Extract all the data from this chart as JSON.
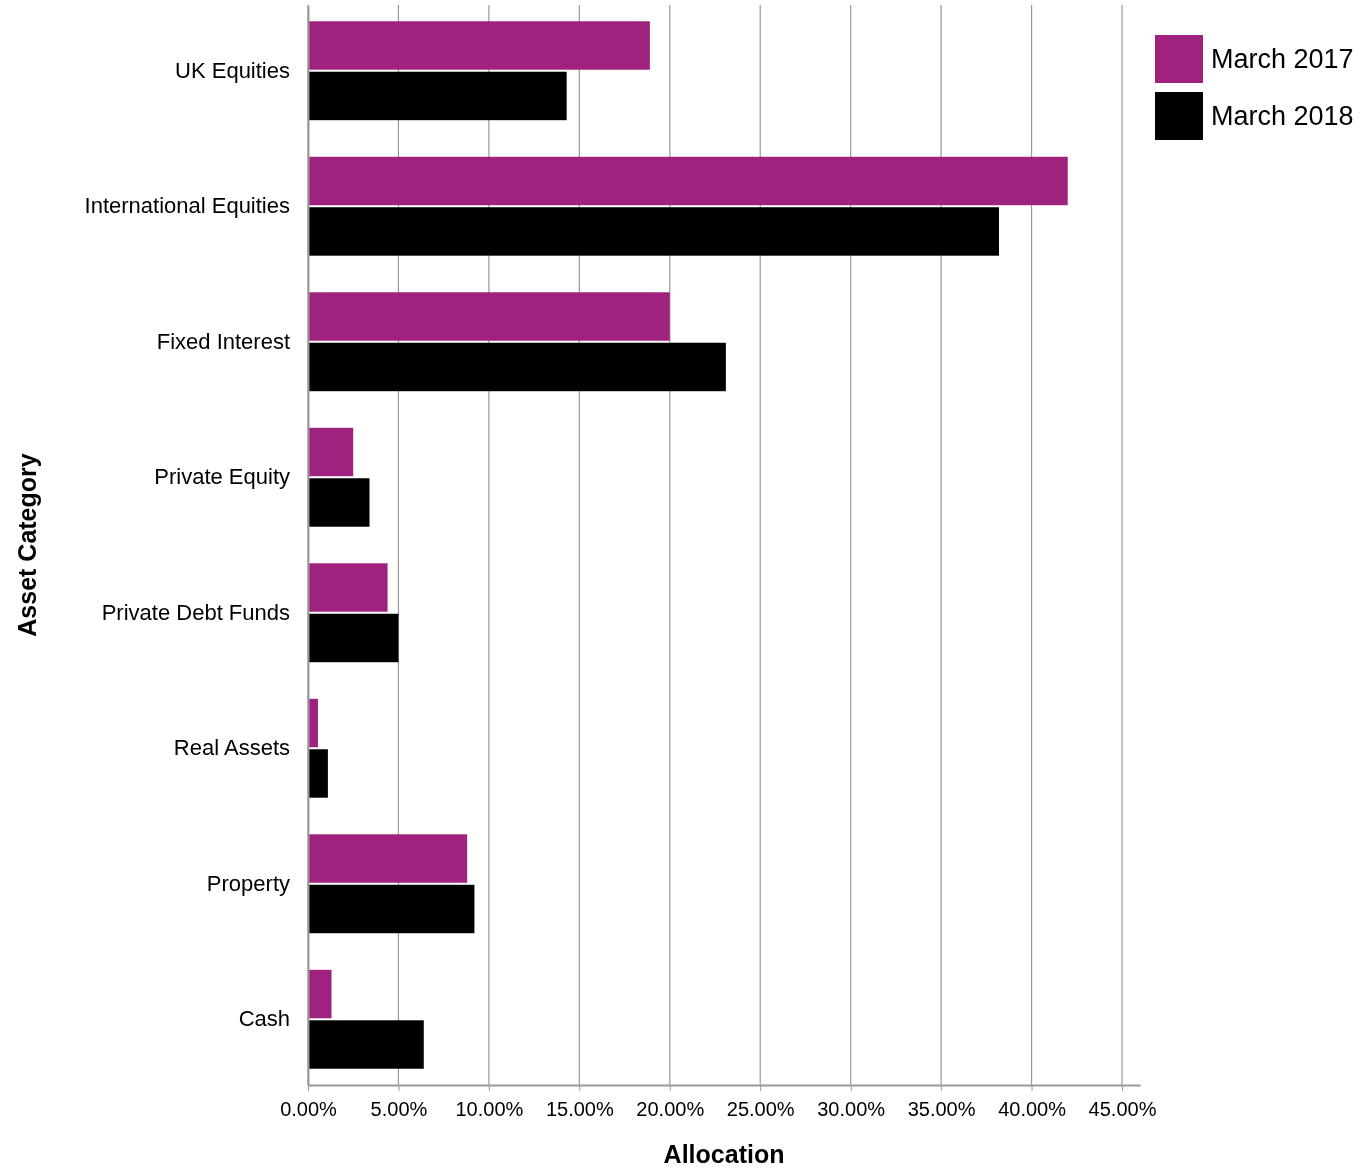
{
  "chart_data": {
    "type": "bar",
    "orientation": "horizontal",
    "xlabel": "Allocation",
    "ylabel": "Asset Category",
    "categories": [
      "UK Equities",
      "International Equities",
      "Fixed Interest",
      "Private Equity",
      "Private Debt Funds",
      "Real Assets",
      "Property",
      "Cash"
    ],
    "series": [
      {
        "name": "March 2017",
        "color": "#a0227f",
        "values": [
          18.9,
          42.0,
          20.0,
          2.5,
          4.4,
          0.55,
          8.8,
          1.3
        ]
      },
      {
        "name": "March 2018",
        "color": "#000000",
        "values": [
          14.3,
          38.2,
          23.1,
          3.4,
          5.0,
          1.1,
          9.2,
          6.4
        ]
      }
    ],
    "xlim": [
      0,
      46
    ],
    "xticks": [
      {
        "value": 0,
        "label": "0.00%"
      },
      {
        "value": 5,
        "label": "5.00%"
      },
      {
        "value": 10,
        "label": "10.00%"
      },
      {
        "value": 15,
        "label": "15.00%"
      },
      {
        "value": 20,
        "label": "20.00%"
      },
      {
        "value": 25,
        "label": "25.00%"
      },
      {
        "value": 30,
        "label": "30.00%"
      },
      {
        "value": 35,
        "label": "35.00%"
      },
      {
        "value": 40,
        "label": "40.00%"
      },
      {
        "value": 45,
        "label": "45.00%"
      }
    ],
    "grid": "x",
    "legend": "top right"
  }
}
